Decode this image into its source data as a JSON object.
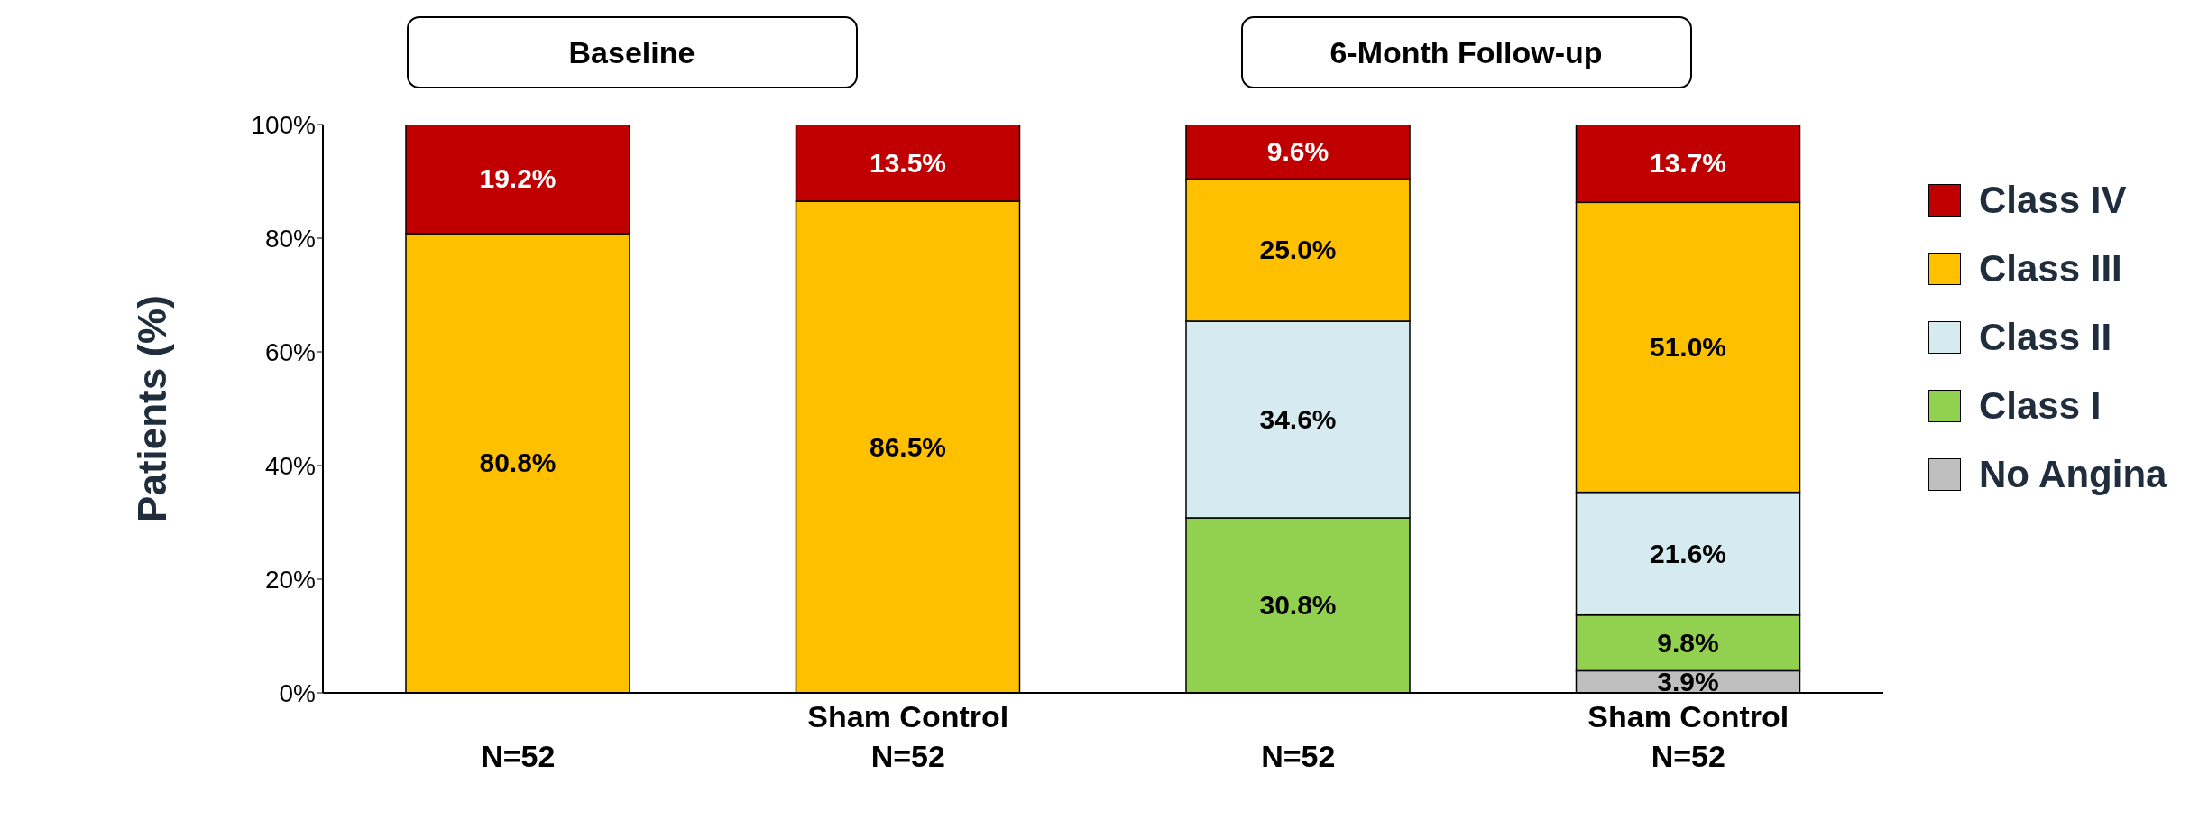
{
  "chart_data": {
    "type": "bar",
    "stacked": true,
    "ylabel": "Patients (%)",
    "categories": [
      "N=52",
      "Sham Control\nN=52",
      "N=52",
      "Sham Control\nN=52"
    ],
    "series": [
      {
        "name": "No Angina",
        "color": "#bfbfbf",
        "values": [
          null,
          null,
          null,
          3.9
        ],
        "value_labels": [
          null,
          null,
          null,
          "3.9%"
        ]
      },
      {
        "name": "Class I",
        "color": "#92d050",
        "values": [
          null,
          null,
          30.8,
          9.8
        ],
        "value_labels": [
          null,
          null,
          "30.8%",
          "9.8%"
        ]
      },
      {
        "name": "Class II",
        "color": "#d5ebf0",
        "values": [
          null,
          null,
          34.6,
          21.6
        ],
        "value_labels": [
          null,
          null,
          "34.6%",
          "21.6%"
        ]
      },
      {
        "name": "Class III",
        "color": "#ffc000",
        "values": [
          80.8,
          86.5,
          25.0,
          51.0
        ],
        "value_labels": [
          "80.8%",
          "86.5%",
          "25.0%",
          "51.0%"
        ]
      },
      {
        "name": "Class IV",
        "color": "#c00000",
        "values": [
          19.2,
          13.5,
          9.6,
          13.7
        ],
        "value_labels": [
          "19.2%",
          "13.5%",
          "9.6%",
          "13.7%"
        ]
      }
    ],
    "ylim": [
      0,
      100
    ],
    "yticks": [
      {
        "value": 0,
        "label": "0%"
      },
      {
        "value": 20,
        "label": "20%"
      },
      {
        "value": 40,
        "label": "40%"
      },
      {
        "value": 60,
        "label": "60%"
      },
      {
        "value": 80,
        "label": "80%"
      },
      {
        "value": 100,
        "label": "100%"
      }
    ],
    "grid": false,
    "legend": "right",
    "annotations": [
      "Baseline",
      "6-Month Follow-up"
    ]
  }
}
